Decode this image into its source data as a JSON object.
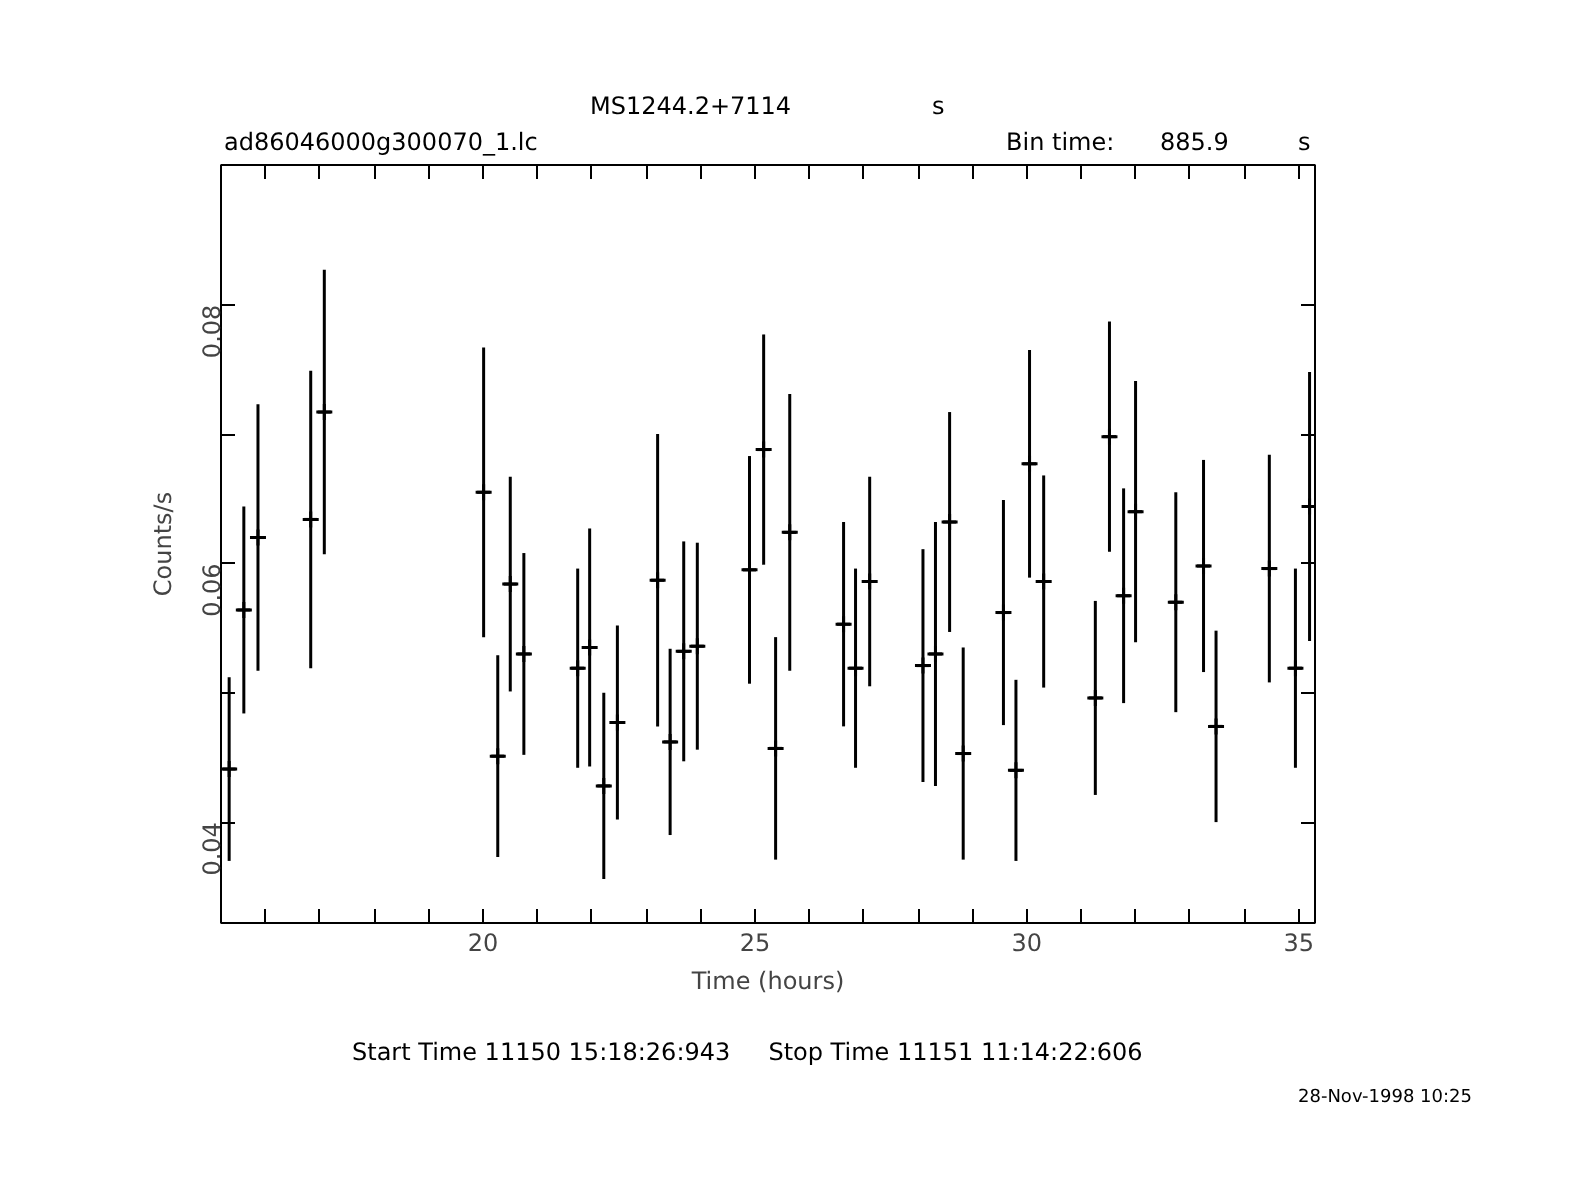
{
  "chart_data": {
    "type": "scatter",
    "title": "MS1244.2+7114",
    "subtitle": "ad86046000g300070_1.lc",
    "xlabel": "Time (hours)",
    "ylabel": "Counts/s",
    "annotations": [
      "s",
      "Bin time:",
      "885.9",
      "s",
      "Start Time 11150 15:18:26:943     Stop Time 11151 11:14:22:606",
      "28-Nov-1998 10:25"
    ],
    "x": [
      15.33,
      15.6,
      15.86,
      16.83,
      17.08,
      20.01,
      20.27,
      20.5,
      20.75,
      21.74,
      21.96,
      22.22,
      22.47,
      23.21,
      23.44,
      23.69,
      23.94,
      24.9,
      25.16,
      25.38,
      25.64,
      26.63,
      26.85,
      27.11,
      28.09,
      28.32,
      28.58,
      28.83,
      29.57,
      29.8,
      30.05,
      30.31,
      31.26,
      31.52,
      31.78,
      32.0,
      32.74,
      33.25,
      33.48,
      34.46,
      34.94,
      35.2
    ],
    "values": [
      0.0441,
      0.0564,
      0.062,
      0.0634,
      0.0717,
      0.0655,
      0.0451,
      0.0584,
      0.053,
      0.0519,
      0.0535,
      0.0428,
      0.0477,
      0.0587,
      0.0462,
      0.0532,
      0.0536,
      0.0595,
      0.0688,
      0.0457,
      0.0624,
      0.0553,
      0.0519,
      0.0586,
      0.0521,
      0.053,
      0.0632,
      0.0453,
      0.0562,
      0.044,
      0.0677,
      0.0586,
      0.0496,
      0.0698,
      0.0575,
      0.064,
      0.057,
      0.0598,
      0.0474,
      0.0596,
      0.0519,
      0.0644
    ],
    "errors": [
      0.0071,
      0.008,
      0.0103,
      0.0115,
      0.011,
      0.0112,
      0.0078,
      0.0083,
      0.0078,
      0.0077,
      0.0092,
      0.0072,
      0.0075,
      0.0113,
      0.0072,
      0.0085,
      0.008,
      0.0088,
      0.0089,
      0.0086,
      0.0107,
      0.0079,
      0.0077,
      0.0081,
      0.009,
      0.0102,
      0.0085,
      0.0082,
      0.0087,
      0.007,
      0.0088,
      0.0082,
      0.0075,
      0.0089,
      0.0083,
      0.0101,
      0.0085,
      0.0082,
      0.0074,
      0.0088,
      0.0077,
      0.0104
    ],
    "xerrors": [
      0.12,
      0.12,
      0.12,
      0.12,
      0.12,
      0.12,
      0.12,
      0.12,
      0.12,
      0.12,
      0.12,
      0.12,
      0.12,
      0.12,
      0.12,
      0.12,
      0.12,
      0.12,
      0.12,
      0.12,
      0.12,
      0.12,
      0.12,
      0.12,
      0.12,
      0.12,
      0.12,
      0.12,
      0.12,
      0.12,
      0.12,
      0.12,
      0.12,
      0.12,
      0.12,
      0.12,
      0.12,
      0.12,
      0.12,
      0.12,
      0.12,
      0.12
    ],
    "color": "#000000",
    "marker": "cross",
    "grid": false,
    "xlim": [
      15.18,
      35.3
    ],
    "ylim": [
      0.0322,
      0.0908
    ],
    "xticks": [
      {
        "value": 16,
        "label": null
      },
      {
        "value": 17,
        "label": null
      },
      {
        "value": 18,
        "label": null
      },
      {
        "value": 19,
        "label": null
      },
      20,
      {
        "value": 21,
        "label": null
      },
      {
        "value": 22,
        "label": null
      },
      {
        "value": 23,
        "label": null
      },
      {
        "value": 24,
        "label": null
      },
      25,
      {
        "value": 26,
        "label": null
      },
      {
        "value": 27,
        "label": null
      },
      {
        "value": 28,
        "label": null
      },
      {
        "value": 29,
        "label": null
      },
      30,
      {
        "value": 31,
        "label": null
      },
      {
        "value": 32,
        "label": null
      },
      {
        "value": 33,
        "label": null
      },
      {
        "value": 34,
        "label": null
      },
      35
    ],
    "yticks": [
      0.04,
      {
        "value": 0.05,
        "label": null
      },
      0.06,
      {
        "value": 0.07,
        "label": null
      },
      0.08
    ]
  }
}
